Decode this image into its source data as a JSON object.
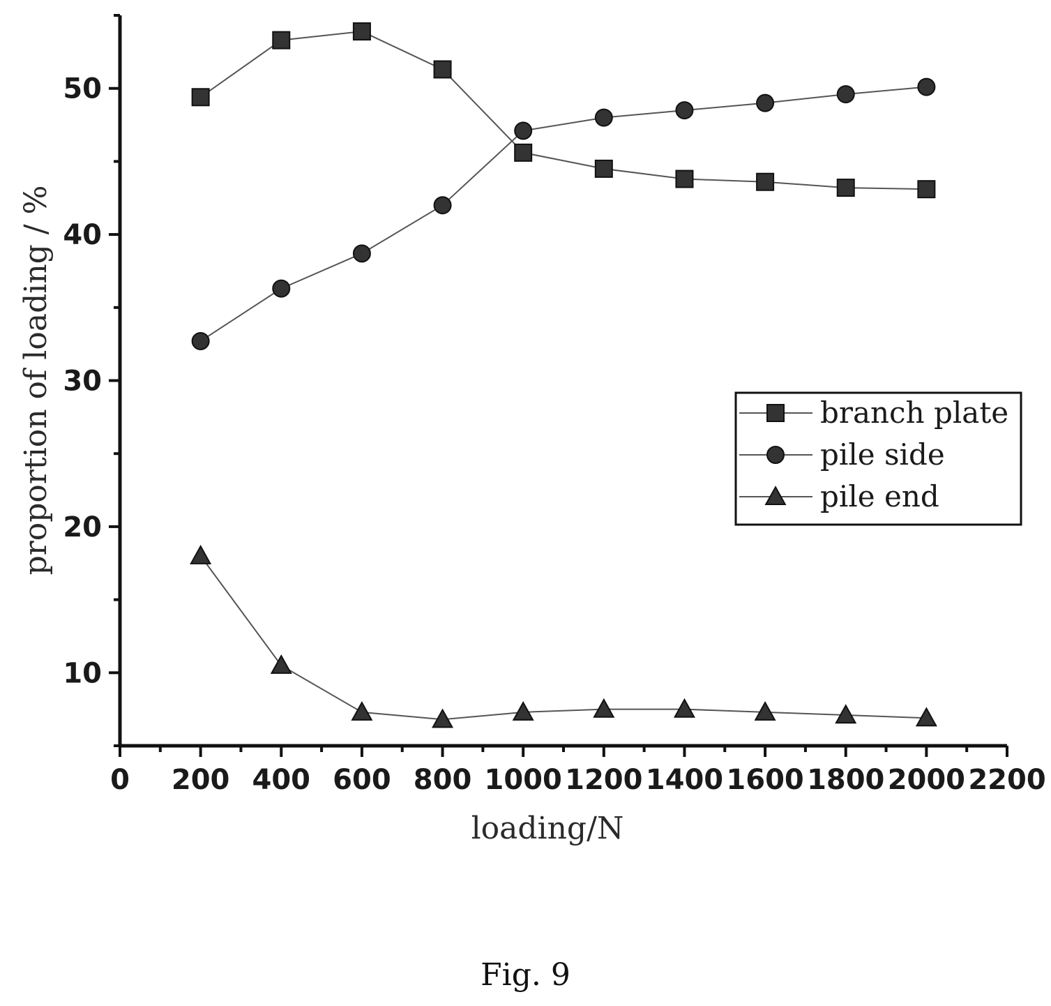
{
  "chart_data": {
    "type": "line",
    "xlabel": "loading/N",
    "ylabel": "proportion of loading / %",
    "xlim": [
      0,
      2200
    ],
    "ylim": [
      5,
      55
    ],
    "x_ticks": [
      0,
      200,
      400,
      600,
      800,
      1000,
      1200,
      1400,
      1600,
      1800,
      2000,
      2200
    ],
    "y_ticks": [
      10,
      20,
      30,
      40,
      50
    ],
    "grid": false,
    "legend_position": "right",
    "x": [
      200,
      400,
      600,
      800,
      1000,
      1200,
      1400,
      1600,
      1800,
      2000
    ],
    "series": [
      {
        "name": "branch plate",
        "marker": "square",
        "values": [
          49.4,
          53.3,
          53.9,
          51.3,
          45.6,
          44.5,
          43.8,
          43.6,
          43.2,
          43.1
        ]
      },
      {
        "name": "pile side",
        "marker": "circle",
        "values": [
          32.7,
          36.3,
          38.7,
          42.0,
          47.1,
          48.0,
          48.5,
          49.0,
          49.6,
          50.1
        ]
      },
      {
        "name": "pile end",
        "marker": "triangle",
        "values": [
          18.0,
          10.5,
          7.3,
          6.8,
          7.3,
          7.5,
          7.5,
          7.3,
          7.1,
          6.9
        ]
      }
    ]
  },
  "caption": "Fig. 9"
}
